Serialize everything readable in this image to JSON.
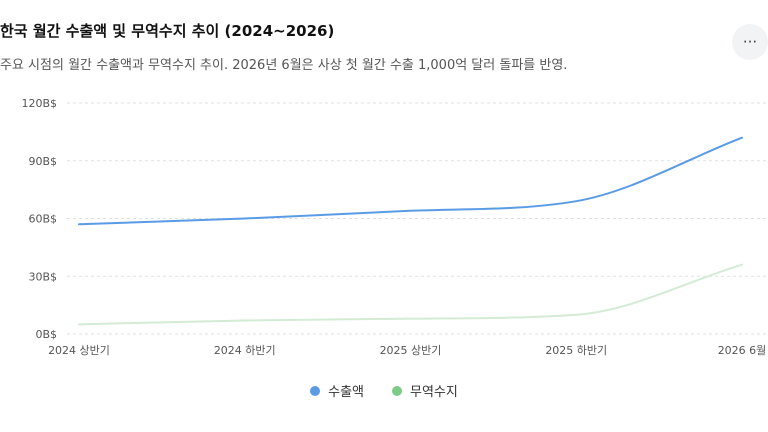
{
  "header": {
    "title": "한국 월간 수출액 및 무역수지 추이 (2024~2026)",
    "subtitle": "주요 시점의 월간 수출액과 무역수지 추이. 2026년 6월은 사상 첫 월간 수출 1,000억 달러 돌파를 반영.",
    "more_icon": "more-horizontal-icon",
    "more_glyph": "···"
  },
  "chart_data": {
    "type": "line",
    "categories": [
      "2024 상반기",
      "2024 하반기",
      "2025 상반기",
      "2025 하반기",
      "2026 6월"
    ],
    "series": [
      {
        "name": "수출액",
        "values": [
          57,
          60,
          64,
          69,
          102
        ],
        "color": "#5a9be6"
      },
      {
        "name": "무역수지",
        "values": [
          5,
          7,
          8,
          10,
          36
        ],
        "color": "#d4ebd5"
      }
    ],
    "y_ticks": [
      "0B$",
      "30B$",
      "60B$",
      "90B$",
      "120B$"
    ],
    "ylim": [
      0,
      120
    ],
    "grid": true,
    "legend_position": "bottom",
    "legend_colors": [
      "#5a9be6",
      "#7ccb87"
    ]
  }
}
